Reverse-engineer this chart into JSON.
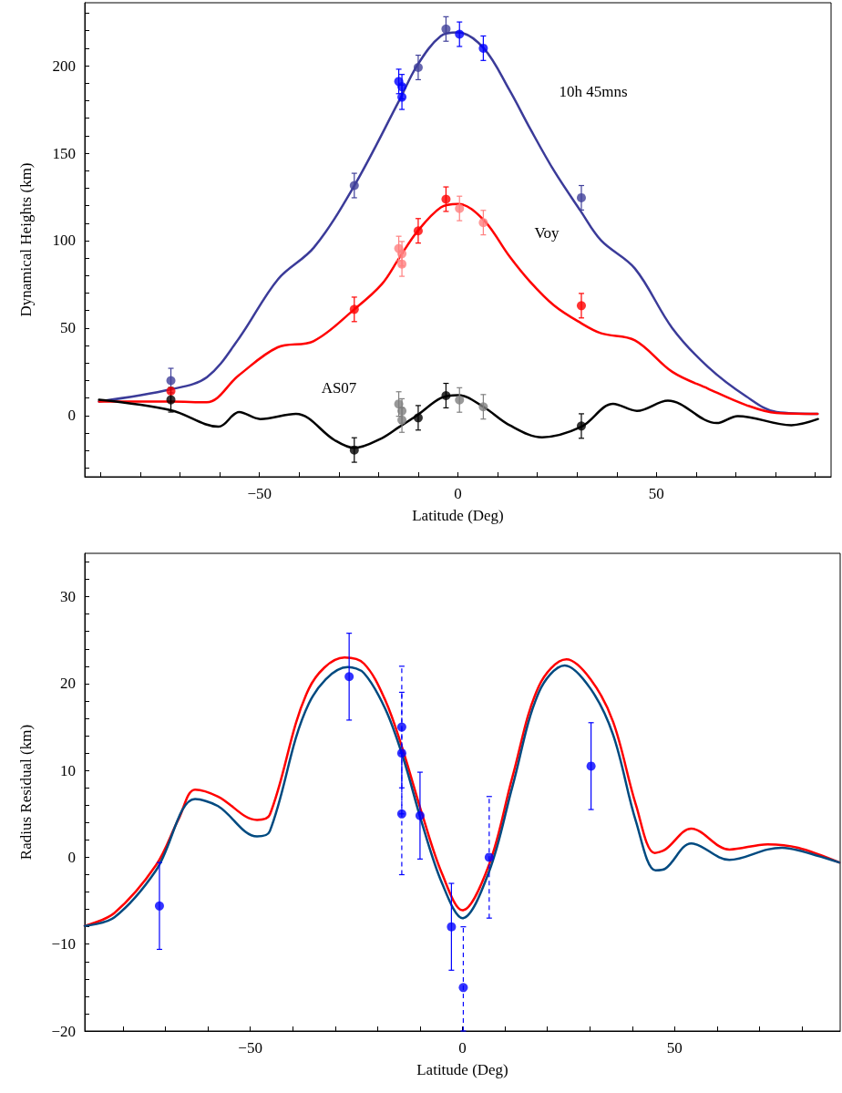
{
  "chart_data": [
    {
      "type": "line",
      "xlabel": "Latitude (Deg)",
      "ylabel": "Dynamical Heights (km)",
      "xlim": [
        -94,
        94
      ],
      "ylim": [
        -35,
        236
      ],
      "xticks": [
        {
          "value": -90,
          "label": null
        },
        {
          "value": -80,
          "label": null
        },
        {
          "value": -70,
          "label": null
        },
        {
          "value": -60,
          "label": null
        },
        {
          "value": -50,
          "label": "−50"
        },
        {
          "value": -40,
          "label": null
        },
        {
          "value": -30,
          "label": null
        },
        {
          "value": -20,
          "label": null
        },
        {
          "value": -10,
          "label": null
        },
        {
          "value": 0,
          "label": "0"
        },
        {
          "value": 10,
          "label": null
        },
        {
          "value": 20,
          "label": null
        },
        {
          "value": 30,
          "label": null
        },
        {
          "value": 40,
          "label": null
        },
        {
          "value": 50,
          "label": "50"
        },
        {
          "value": 60,
          "label": null
        },
        {
          "value": 70,
          "label": null
        },
        {
          "value": 80,
          "label": null
        },
        {
          "value": 90,
          "label": null
        }
      ],
      "yticks": [
        {
          "value": -30,
          "label": null
        },
        {
          "value": -20,
          "label": null
        },
        {
          "value": -10,
          "label": null
        },
        0,
        {
          "value": 10,
          "label": null
        },
        {
          "value": 20,
          "label": null
        },
        {
          "value": 30,
          "label": null
        },
        {
          "value": 40,
          "label": null
        },
        50,
        {
          "value": 60,
          "label": null
        },
        {
          "value": 70,
          "label": null
        },
        {
          "value": 80,
          "label": null
        },
        {
          "value": 90,
          "label": null
        },
        100,
        {
          "value": 110,
          "label": null
        },
        {
          "value": 120,
          "label": null
        },
        {
          "value": 130,
          "label": null
        },
        {
          "value": 140,
          "label": null
        },
        150,
        {
          "value": 160,
          "label": null
        },
        {
          "value": 170,
          "label": null
        },
        {
          "value": 180,
          "label": null
        },
        {
          "value": 190,
          "label": null
        },
        200,
        {
          "value": 210,
          "label": null
        },
        {
          "value": 220,
          "label": null
        },
        {
          "value": 230,
          "label": null
        }
      ],
      "grid": false,
      "series": [
        {
          "name": "10h 45mns",
          "color": "#3b3b99",
          "x": [
            -90.4,
            -72.2,
            -63.2,
            -55.2,
            -45.3,
            -36.3,
            -26.2,
            -14.8,
            -10.3,
            -4.3,
            0,
            6.5,
            13,
            18.2,
            24.2,
            30.9,
            36.1,
            44.6,
            54,
            62.9,
            72.6,
            80.3,
            90.6
          ],
          "values": [
            8,
            15,
            22,
            44,
            78,
            96,
            131,
            180,
            200,
            217,
            219,
            210,
            186,
            164,
            140,
            117,
            100,
            84,
            50,
            28,
            11,
            2,
            1
          ]
        },
        {
          "name": "Voy",
          "color": "#ff0000",
          "x": [
            -90.4,
            -72.2,
            -63.3,
            -55.2,
            -45.4,
            -36.4,
            -26.1,
            -19.2,
            -14.8,
            -10.3,
            -4.3,
            0,
            6.4,
            13,
            18.2,
            24.2,
            30.9,
            36.1,
            44.6,
            54,
            63,
            72.6,
            80.2,
            90.6
          ],
          "values": [
            8,
            8,
            7.6,
            23,
            39,
            42.5,
            60.7,
            75,
            90,
            105,
            119,
            121,
            112,
            91,
            76.5,
            63,
            53,
            47,
            43,
            25,
            15.4,
            6,
            1.5,
            1
          ]
        },
        {
          "name": "AS07",
          "color": "#000000",
          "x": [
            -90.4,
            -72.3,
            -60.3,
            -55.1,
            -49.8,
            -40.8,
            -31.1,
            -26.1,
            -19.2,
            -14.7,
            -10,
            -4.3,
            0,
            6.4,
            13,
            21.2,
            31.1,
            39.1,
            45.1,
            52.9,
            65.2,
            70.5,
            84,
            90.7
          ],
          "values": [
            9,
            3,
            -6.4,
            2,
            -2,
            1,
            -14,
            -18.5,
            -13,
            -6.4,
            0.6,
            10,
            11.7,
            5,
            -5.5,
            -12.4,
            -6.4,
            6.7,
            2.7,
            8.5,
            -4.3,
            -0.3,
            -5.5,
            -2
          ]
        },
        {
          "type": "scatter",
          "marker": "circle",
          "x": [
            -72.3,
            -26.1,
            -14.9,
            -14.1,
            -14.1,
            -10,
            -3,
            0.4,
            6.4,
            31.1
          ],
          "values": [
            20,
            131.5,
            191,
            188,
            182,
            199,
            221,
            218,
            210,
            124.5
          ],
          "errors": [
            7,
            7,
            7,
            7,
            7,
            7,
            7,
            7,
            7,
            7
          ],
          "colors": [
            "#40409a",
            "#40409a",
            "#0000ff",
            "#0000ff",
            "#0000ff",
            "#40409a",
            "#40409a",
            "#0000ff",
            "#0000ff",
            "#40409a"
          ]
        },
        {
          "type": "scatter",
          "marker": "circle",
          "x": [
            -72.3,
            -26.1,
            -14.9,
            -14.1,
            -14.1,
            -10,
            -3,
            0.4,
            6.4,
            31.1
          ],
          "values": [
            14,
            60.7,
            95.5,
            92.5,
            86.6,
            105.6,
            123.7,
            118.4,
            110.3,
            62.8
          ],
          "errors": [
            null,
            7,
            7,
            7,
            7,
            7,
            7,
            7,
            7,
            7
          ],
          "colors": [
            "#ff0000",
            "#ff0000",
            "#ff8080",
            "#ff8080",
            "#ff8080",
            "#ff0000",
            "#ff0000",
            "#ff8080",
            "#ff8080",
            "#ff0000"
          ]
        },
        {
          "type": "scatter",
          "marker": "circle",
          "x": [
            -72.3,
            -26.1,
            -14.9,
            -14.1,
            -14.1,
            -10,
            -3,
            0.4,
            6.4,
            31.1
          ],
          "values": [
            9,
            -19.7,
            6.6,
            2.6,
            -2.6,
            -1.3,
            11.4,
            8.9,
            5,
            -6
          ],
          "errors": [
            7,
            7,
            7,
            7,
            7,
            7,
            7,
            7,
            7,
            7
          ],
          "colors": [
            "#000000",
            "#000000",
            "#808080",
            "#808080",
            "#808080",
            "#000000",
            "#000000",
            "#808080",
            "#808080",
            "#000000"
          ]
        }
      ]
    },
    {
      "type": "line",
      "xlabel": "Latitude (Deg)",
      "ylabel": "Radius Residual (km)",
      "xlim": [
        -89,
        89
      ],
      "ylim": [
        -20,
        35
      ],
      "xticks": [
        {
          "value": -80,
          "label": null
        },
        {
          "value": -70,
          "label": null
        },
        {
          "value": -60,
          "label": null
        },
        {
          "value": -50,
          "label": "−50"
        },
        {
          "value": -40,
          "label": null
        },
        {
          "value": -30,
          "label": null
        },
        {
          "value": -20,
          "label": null
        },
        {
          "value": -10,
          "label": null
        },
        {
          "value": 0,
          "label": "0"
        },
        {
          "value": 10,
          "label": null
        },
        {
          "value": 20,
          "label": null
        },
        {
          "value": 30,
          "label": null
        },
        {
          "value": 40,
          "label": null
        },
        {
          "value": 50,
          "label": "50"
        },
        {
          "value": 60,
          "label": null
        },
        {
          "value": 70,
          "label": null
        },
        {
          "value": 80,
          "label": null
        }
      ],
      "yticks": [
        {
          "value": -20,
          "label": "−20"
        },
        {
          "value": -18,
          "label": null
        },
        {
          "value": -16,
          "label": null
        },
        {
          "value": -14,
          "label": null
        },
        {
          "value": -12,
          "label": null
        },
        {
          "value": -10,
          "label": "−10"
        },
        {
          "value": -8,
          "label": null
        },
        {
          "value": -6,
          "label": null
        },
        {
          "value": -4,
          "label": null
        },
        {
          "value": -2,
          "label": null
        },
        0,
        {
          "value": 2,
          "label": null
        },
        {
          "value": 4,
          "label": null
        },
        {
          "value": 6,
          "label": null
        },
        {
          "value": 8,
          "label": null
        },
        10,
        {
          "value": 12,
          "label": null
        },
        {
          "value": 14,
          "label": null
        },
        {
          "value": 16,
          "label": null
        },
        {
          "value": 18,
          "label": null
        },
        20,
        {
          "value": 22,
          "label": null
        },
        {
          "value": 24,
          "label": null
        },
        {
          "value": 26,
          "label": null
        },
        {
          "value": 28,
          "label": null
        },
        30,
        {
          "value": 32,
          "label": null
        },
        {
          "value": 34,
          "label": null
        }
      ],
      "grid": false,
      "series": [
        {
          "color": "#ff0000",
          "x": [
            -89,
            -82,
            -72.2,
            -66.8,
            -63,
            -57.6,
            -48.4,
            -45.4,
            -36.2,
            -27.8,
            -23.2,
            -18.2,
            -14,
            -9.4,
            -4.8,
            0,
            6.3,
            11.8,
            18,
            24.5,
            30.2,
            35.5,
            40.9,
            45.3,
            47.8,
            53.9,
            62.9,
            71.9,
            79.1,
            88.8
          ],
          "values": [
            -7.9,
            -6.4,
            -0.9,
            4.5,
            7.8,
            7,
            4.3,
            4.9,
            19.4,
            23,
            22.3,
            18.1,
            12.3,
            4.8,
            -1.9,
            -6.1,
            -0.8,
            9.3,
            19.7,
            22.8,
            20.5,
            15.6,
            6,
            0.5,
            0.9,
            3.3,
            0.9,
            1.5,
            1.1,
            -0.6
          ]
        },
        {
          "color": "#004a80",
          "x": [
            -89,
            -82,
            -72.2,
            -63,
            -57.6,
            -48.4,
            -45.4,
            -36.2,
            -27,
            -23.2,
            -18.2,
            -14,
            -9.4,
            -4.8,
            0,
            6.3,
            11.8,
            18,
            24.1,
            30.2,
            35.5,
            40.9,
            45.5,
            47.8,
            53.9,
            62.9,
            71.9,
            75.3,
            79.1,
            88.8
          ],
          "values": [
            -7.9,
            -6.9,
            -1.5,
            6.7,
            5.9,
            2.4,
            3,
            17.7,
            21.9,
            21.2,
            17.1,
            11.5,
            3.7,
            -3,
            -7,
            -1.6,
            8.2,
            19,
            22.1,
            19.4,
            14.1,
            4.1,
            -1.5,
            -1.3,
            1.6,
            -0.3,
            0.9,
            1.1,
            0.8,
            -0.6
          ]
        },
        {
          "type": "scatter",
          "marker": "circle",
          "line_style": "solid",
          "color": "#0000ff",
          "x": [
            -71.4,
            -26.7,
            -10,
            -2.6,
            30.3
          ],
          "values": [
            -5.6,
            20.8,
            4.8,
            -8,
            10.5
          ],
          "errors": [
            5,
            5,
            5,
            5,
            5
          ]
        },
        {
          "type": "scatter",
          "marker": "circle",
          "line_style": "dashed",
          "color": "#0000ff",
          "x": [
            -14.3,
            -14.3,
            -14.3,
            0.2,
            6.3
          ],
          "values": [
            15,
            12,
            5,
            -15,
            0
          ],
          "errors": [
            7,
            7,
            7,
            [
              -20,
              -8
            ],
            7
          ]
        }
      ]
    }
  ]
}
